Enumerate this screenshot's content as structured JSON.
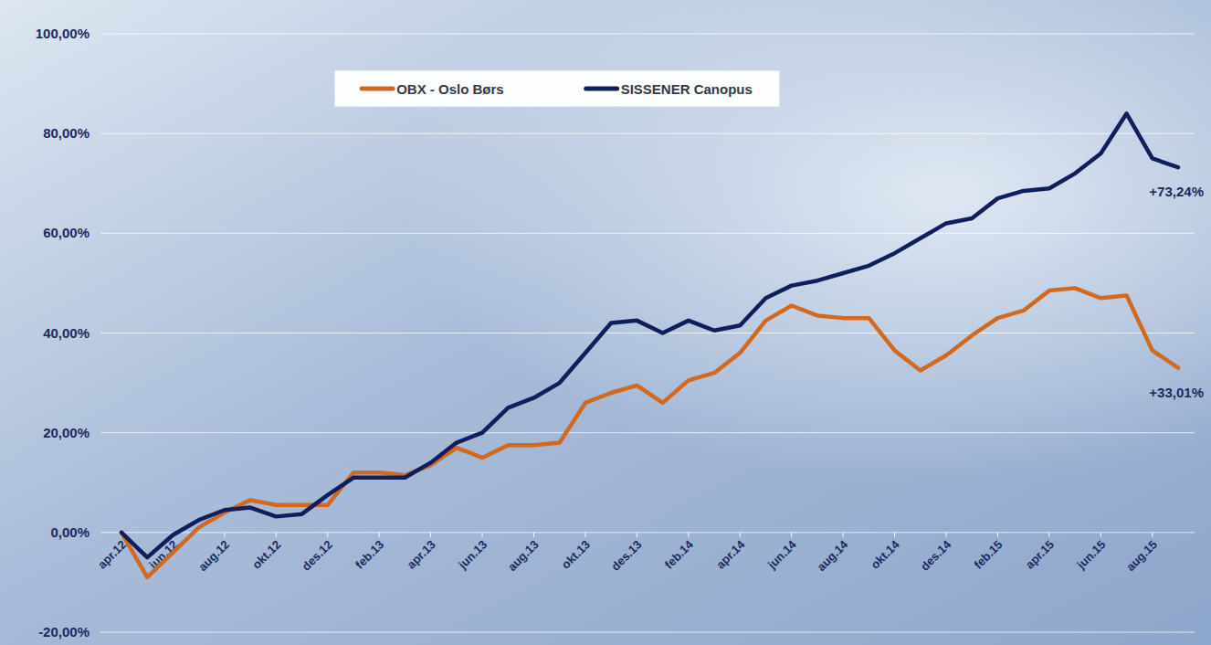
{
  "chart_data": {
    "type": "line",
    "categories": [
      "apr.12",
      null,
      "jun.12",
      null,
      "aug.12",
      null,
      "okt.12",
      null,
      "des.12",
      null,
      "feb.13",
      null,
      "apr.13",
      null,
      "jun.13",
      null,
      "aug.13",
      null,
      "okt.13",
      null,
      "des.13",
      null,
      "feb.14",
      null,
      "apr.14",
      null,
      "jun.14",
      null,
      "aug.14",
      null,
      "okt.14",
      null,
      "des.14",
      null,
      "feb.15",
      null,
      "apr.15",
      null,
      "jun.15",
      null,
      "aug.15",
      null
    ],
    "series": [
      {
        "name": "OBX - Oslo Børs",
        "color": "#d2691e",
        "values": [
          0,
          -9,
          -4,
          1,
          4,
          6.5,
          5.5,
          5.5,
          5.5,
          12,
          12,
          11.5,
          13.5,
          17,
          15,
          17.5,
          17.5,
          18,
          26,
          28,
          29.5,
          26,
          30.5,
          32,
          36,
          42.5,
          45.5,
          43.5,
          43,
          43,
          36.5,
          32.5,
          35.5,
          39.5,
          43,
          44.5,
          48.5,
          49,
          47,
          47.5,
          36.5,
          33.01
        ]
      },
      {
        "name": "SISSENER Canopus",
        "color": "#0e1f5b",
        "values": [
          0,
          -5,
          -0.5,
          2.5,
          4.5,
          5,
          3.2,
          3.7,
          7.5,
          11,
          11,
          11,
          14,
          18,
          20,
          25,
          27,
          30,
          36,
          42,
          42.5,
          40,
          42.5,
          40.5,
          41.5,
          47,
          49.5,
          50.5,
          52,
          53.5,
          56,
          59,
          62,
          63,
          67,
          68.5,
          69,
          72,
          76,
          84,
          75,
          73.24
        ]
      }
    ],
    "annotations": [
      {
        "text": "+73,24%",
        "value": 73.24
      },
      {
        "text": "+33,01%",
        "value": 33.01
      }
    ],
    "ylim": [
      -20,
      100
    ],
    "yticks": [
      {
        "value": -20,
        "label": "-20,00%"
      },
      {
        "value": 0,
        "label": "0,00%"
      },
      {
        "value": 20,
        "label": "20,00%"
      },
      {
        "value": 40,
        "label": "40,00%"
      },
      {
        "value": 60,
        "label": "60,00%"
      },
      {
        "value": 80,
        "label": "80,00%"
      },
      {
        "value": 100,
        "label": "100,00%"
      }
    ],
    "grid": true,
    "legend": "top"
  }
}
